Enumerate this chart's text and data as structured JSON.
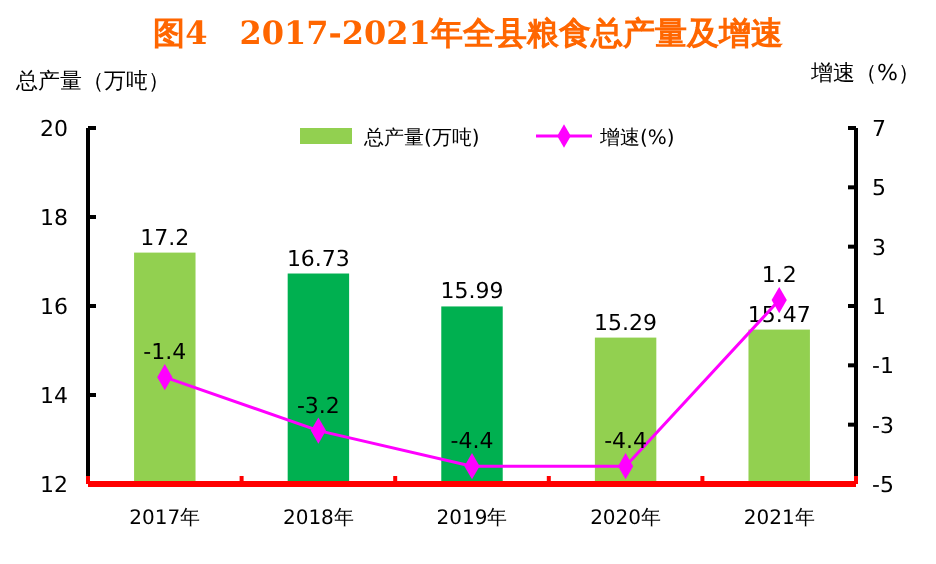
{
  "chart_data": {
    "type": "bar",
    "title": "图4　2017-2021年全县粮食总产量及增速",
    "ylabel": "总产量（万吨）",
    "y2label": "增速（%）",
    "categories": [
      "2017年",
      "2018年",
      "2019年",
      "2020年",
      "2021年"
    ],
    "series": [
      {
        "name": "总产量(万吨)",
        "color": "#92d050",
        "colors": [
          "#92d050",
          "#00b050",
          "#00b050",
          "#92d050",
          "#92d050"
        ],
        "values": [
          17.2,
          16.73,
          15.99,
          15.29,
          15.47
        ]
      },
      {
        "name": "增速(%)",
        "type": "line",
        "axis": "y2",
        "color": "#ff00ff",
        "marker": "diamond",
        "values": [
          -1.4,
          -3.2,
          -4.4,
          -4.4,
          1.2
        ]
      }
    ],
    "ylim": [
      12,
      20
    ],
    "yticks": [
      12,
      14,
      16,
      18,
      20
    ],
    "y2lim": [
      -5,
      7
    ],
    "y2ticks": [
      -5,
      -3,
      -1,
      1,
      3,
      5,
      7
    ],
    "data_labels": true,
    "grid": false,
    "legend": "top"
  }
}
